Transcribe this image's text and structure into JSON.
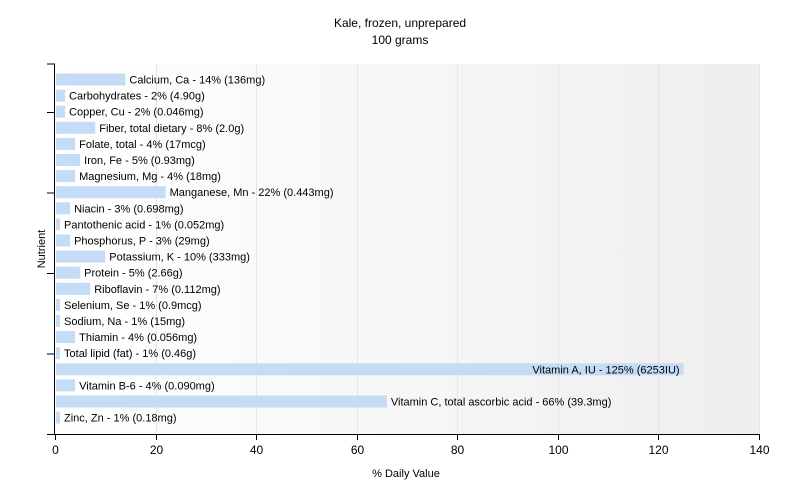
{
  "chart_data": {
    "type": "bar",
    "orientation": "horizontal",
    "title": "Kale, frozen, unprepared",
    "subtitle": "100 grams",
    "xlabel": "% Daily Value",
    "ylabel": "Nutrient",
    "xlim": [
      0,
      140
    ],
    "xticks": [
      0,
      20,
      40,
      60,
      80,
      100,
      120,
      140
    ],
    "grid": true,
    "bar_color": "#c5dcf7",
    "categories": [
      "Calcium, Ca",
      "Carbohydrates",
      "Copper, Cu",
      "Fiber, total dietary",
      "Folate, total",
      "Iron, Fe",
      "Magnesium, Mg",
      "Manganese, Mn",
      "Niacin",
      "Pantothenic acid",
      "Phosphorus, P",
      "Potassium, K",
      "Protein",
      "Riboflavin",
      "Selenium, Se",
      "Sodium, Na",
      "Thiamin",
      "Total lipid (fat)",
      "Vitamin A, IU",
      "Vitamin B-6",
      "Vitamin C, total ascorbic acid",
      "Zinc, Zn"
    ],
    "values": [
      14,
      2,
      2,
      8,
      4,
      5,
      4,
      22,
      3,
      1,
      3,
      10,
      5,
      7,
      1,
      1,
      4,
      1,
      125,
      4,
      66,
      1
    ],
    "labels": [
      "Calcium, Ca - 14% (136mg)",
      "Carbohydrates - 2% (4.90g)",
      "Copper, Cu - 2% (0.046mg)",
      "Fiber, total dietary - 8% (2.0g)",
      "Folate, total - 4% (17mcg)",
      "Iron, Fe - 5% (0.93mg)",
      "Magnesium, Mg - 4% (18mg)",
      "Manganese, Mn - 22% (0.443mg)",
      "Niacin - 3% (0.698mg)",
      "Pantothenic acid - 1% (0.052mg)",
      "Phosphorus, P - 3% (29mg)",
      "Potassium, K - 10% (333mg)",
      "Protein - 5% (2.66g)",
      "Riboflavin - 7% (0.112mg)",
      "Selenium, Se - 1% (0.9mcg)",
      "Sodium, Na - 1% (15mg)",
      "Thiamin - 4% (0.056mg)",
      "Total lipid (fat) - 1% (0.46g)",
      "Vitamin A, IU - 125% (6253IU)",
      "Vitamin B-6 - 4% (0.090mg)",
      "Vitamin C, total ascorbic acid - 66% (39.3mg)",
      "Zinc, Zn - 1% (0.18mg)"
    ]
  }
}
